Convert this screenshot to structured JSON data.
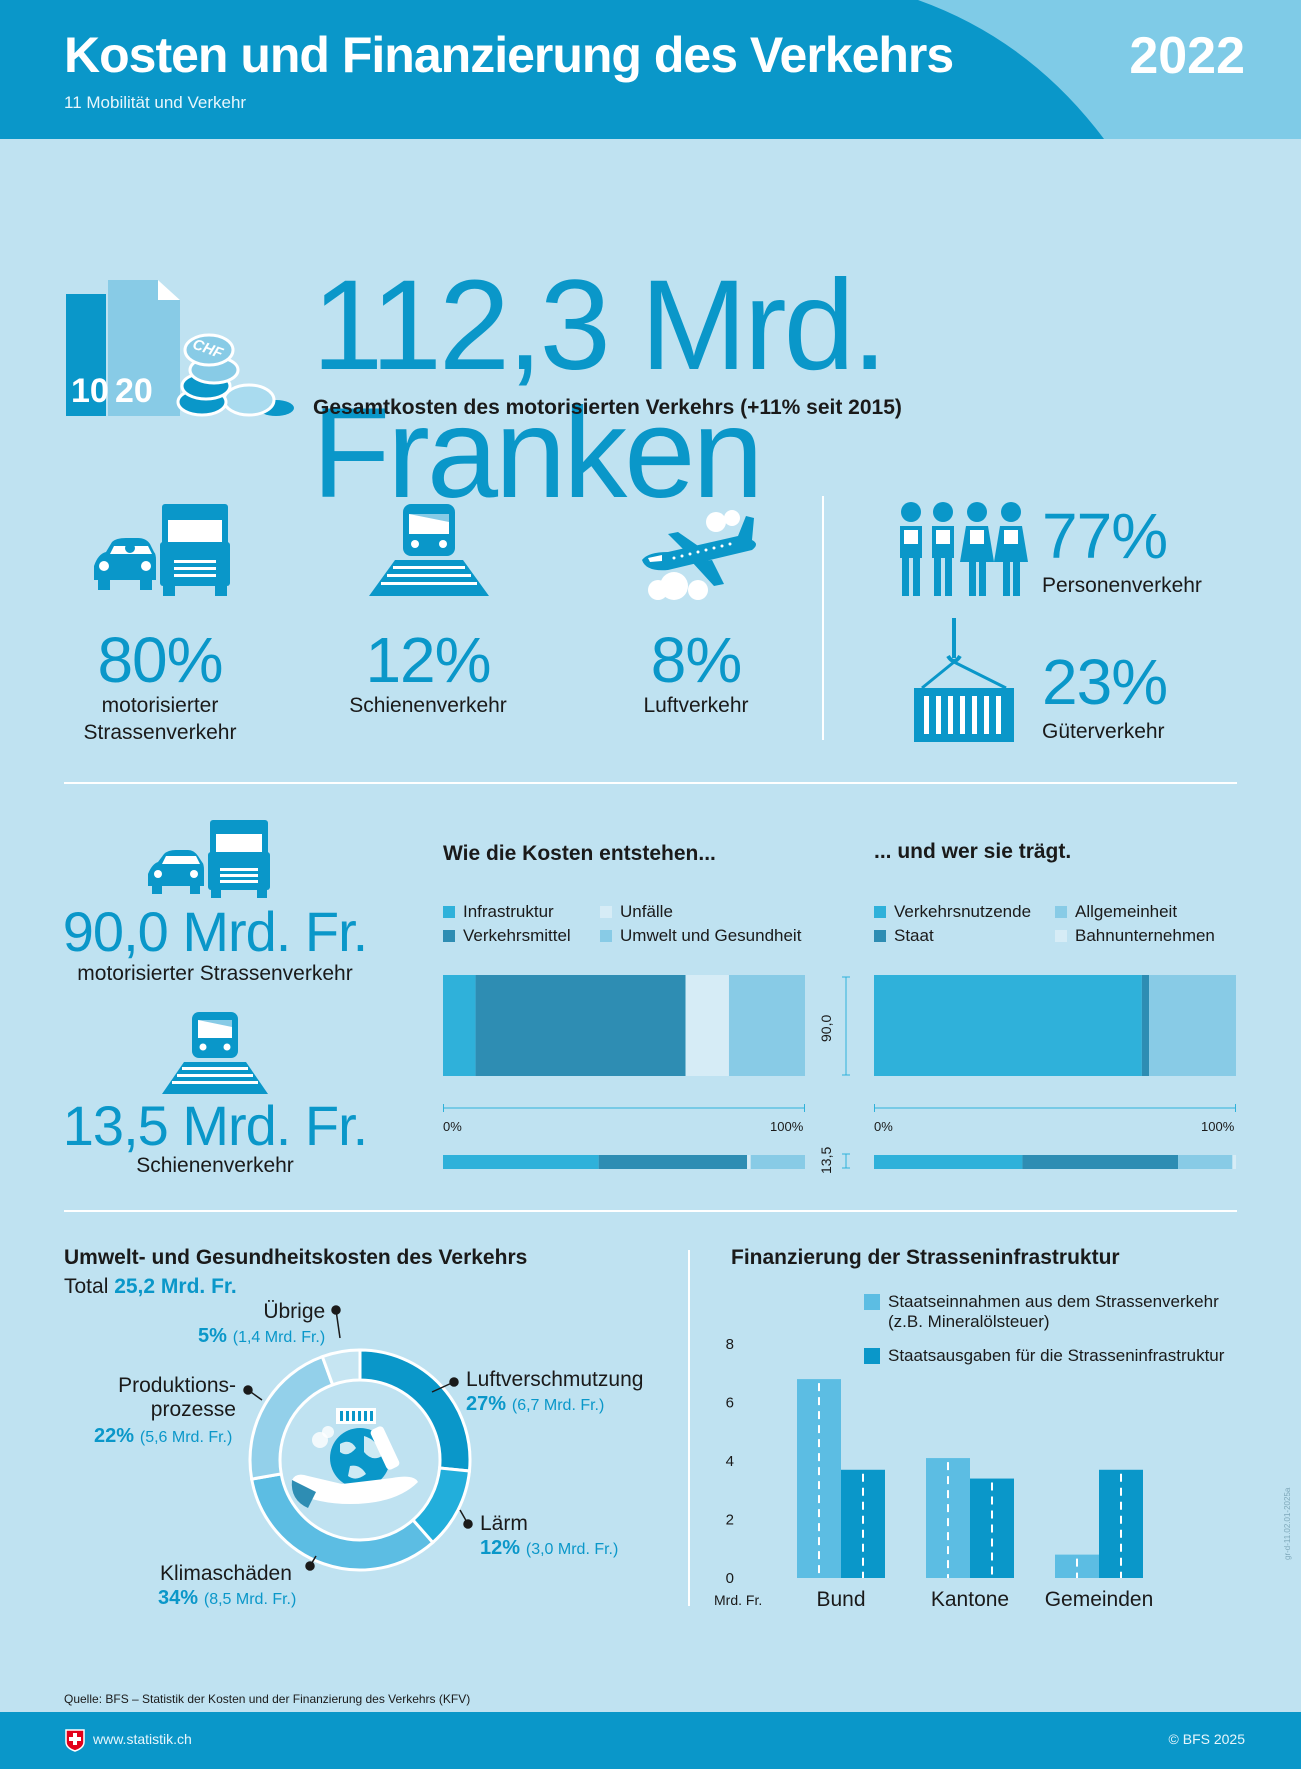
{
  "header": {
    "title": "Kosten und Finanzierung des Verkehrs",
    "subtitle": "11 Mobilität und Verkehr",
    "year": "2022"
  },
  "total": {
    "value": "112,3 Mrd. Franken",
    "label": "Gesamtkosten des motorisierten Verkehrs (+11% seit 2015)",
    "icon_text_a": "10",
    "icon_text_b": "20",
    "coin_text": "CHF"
  },
  "modes": [
    {
      "pct": "80%",
      "label": "motorisierter\nStrassenverkehr",
      "icon": "car-truck-icon"
    },
    {
      "pct": "12%",
      "label": "Schienenverkehr",
      "icon": "train-icon"
    },
    {
      "pct": "8%",
      "label": "Luftverkehr",
      "icon": "airplane-icon"
    }
  ],
  "purpose": [
    {
      "pct": "77%",
      "label": "Personenverkehr",
      "icon": "people-icon"
    },
    {
      "pct": "23%",
      "label": "Güterverkehr",
      "icon": "container-icon"
    }
  ],
  "road": {
    "amount": "90,0 Mrd. Fr.",
    "label": "motorisierter Strassenverkehr"
  },
  "rail": {
    "amount": "13,5 Mrd. Fr.",
    "label": "Schienenverkehr"
  },
  "colors": {
    "brand": "#0a97c9",
    "infra": "#2fb1da",
    "vehicles": "#2e8db3",
    "accidents": "#d6ecf6",
    "environment": "#88cbe6",
    "background": "#bfe2f1"
  },
  "chart_data": [
    {
      "type": "bar",
      "orientation": "horizontal-stacked-percent",
      "title": "Wie die Kosten entstehen...",
      "legend": [
        "Infrastruktur",
        "Verkehrsmittel",
        "Unfälle",
        "Umwelt und Gesundheit"
      ],
      "categories": [
        "90,0",
        "13,5"
      ],
      "series": [
        {
          "name": "Infrastruktur",
          "values": [
            9,
            43
          ]
        },
        {
          "name": "Verkehrsmittel",
          "values": [
            58,
            41
          ]
        },
        {
          "name": "Unfälle",
          "values": [
            12,
            1
          ]
        },
        {
          "name": "Umwelt und Gesundheit",
          "values": [
            21,
            15
          ]
        }
      ],
      "xlim": [
        0,
        100
      ],
      "tick_labels": [
        "0%",
        "100%"
      ]
    },
    {
      "type": "bar",
      "orientation": "horizontal-stacked-percent",
      "title": "... und wer sie trägt.",
      "legend": [
        "Verkehrsnutzende",
        "Staat",
        "Allgemeinheit",
        "Bahnunternehmen"
      ],
      "categories": [
        "90,0",
        "13,5"
      ],
      "series": [
        {
          "name": "Verkehrsnutzende",
          "values": [
            74,
            41
          ]
        },
        {
          "name": "Staat",
          "values": [
            2,
            43
          ]
        },
        {
          "name": "Allgemeinheit",
          "values": [
            24,
            15
          ]
        },
        {
          "name": "Bahnunternehmen",
          "values": [
            0,
            1
          ]
        }
      ],
      "xlim": [
        0,
        100
      ],
      "tick_labels": [
        "0%",
        "100%"
      ]
    },
    {
      "type": "pie",
      "title": "Umwelt- und Gesundheitskosten des Verkehrs",
      "total_label": "Total",
      "total_value": "25,2 Mrd. Fr.",
      "slices": [
        {
          "name": "Luftverschmutzung",
          "pct": "27%",
          "value": 6.7,
          "value_label": "(6,7 Mrd. Fr.)",
          "color": "#0a97c9"
        },
        {
          "name": "Lärm",
          "pct": "12%",
          "value": 3.0,
          "value_label": "(3,0 Mrd. Fr.)",
          "color": "#22aedb"
        },
        {
          "name": "Klimaschäden",
          "pct": "34%",
          "value": 8.5,
          "value_label": "(8,5 Mrd. Fr.)",
          "color": "#5cbde3"
        },
        {
          "name": "Produktions-\nprozesse",
          "pct": "22%",
          "value": 5.6,
          "value_label": "(5,6 Mrd. Fr.)",
          "color": "#93d0ea"
        },
        {
          "name": "Übrige",
          "pct": "5%",
          "value": 1.4,
          "value_label": "(1,4 Mrd. Fr.)",
          "color": "#c6e5f2"
        }
      ]
    },
    {
      "type": "bar",
      "title": "Finanzierung der Strasseninfrastruktur",
      "categories": [
        "Bund",
        "Kantone",
        "Gemeinden"
      ],
      "series": [
        {
          "name": "Staatseinnahmen aus dem Strassenverkehr\n(z.B. Mineralölsteuer)",
          "values": [
            6.8,
            4.1,
            0.8
          ],
          "color": "#5cbde3"
        },
        {
          "name": "Staatsausgaben für die Strasseninfrastruktur",
          "values": [
            3.7,
            3.4,
            3.7
          ],
          "color": "#0a97c9"
        }
      ],
      "ylim": [
        0,
        8
      ],
      "yticks": [
        0,
        2,
        4,
        6,
        8
      ],
      "ylabel": "Mrd. Fr."
    }
  ],
  "footer": {
    "source": "Quelle: BFS – Statistik der Kosten und der Finanzierung des Verkehrs (KFV)",
    "url": "www.statistik.ch",
    "copyright": "© BFS 2025",
    "code": "gr-d-11.02.01-2025a"
  }
}
